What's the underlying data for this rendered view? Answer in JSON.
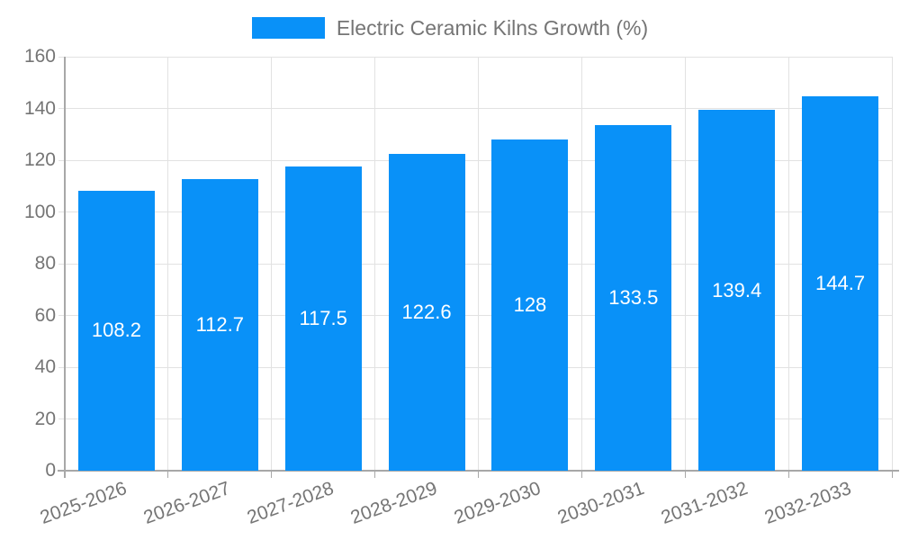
{
  "legend": {
    "label": "Electric Ceramic Kilns Growth (%)",
    "swatch_color": "#0991f8"
  },
  "chart_data": {
    "type": "bar",
    "title": "Electric Ceramic Kilns Growth (%)",
    "categories": [
      "2025-2026",
      "2026-2027",
      "2027-2028",
      "2028-2029",
      "2029-2030",
      "2030-2031",
      "2031-2032",
      "2032-2033"
    ],
    "values": [
      108.2,
      112.7,
      117.5,
      122.6,
      128,
      133.5,
      139.4,
      144.7
    ],
    "value_labels": [
      "108.2",
      "112.7",
      "117.5",
      "122.6",
      "128",
      "133.5",
      "139.4",
      "144.7"
    ],
    "xlabel": "",
    "ylabel": "",
    "ylim": [
      0,
      160
    ],
    "ytick_step": 20,
    "ytick_labels": [
      "0",
      "20",
      "40",
      "60",
      "80",
      "100",
      "120",
      "140",
      "160"
    ],
    "grid": true,
    "legend_position": "top-center",
    "x_tick_rotation_deg": -20,
    "colors": {
      "bar": "#0991f8",
      "value_label": "#ffffff",
      "axis_text": "#757575",
      "axis_line": "#a8a8a8",
      "gridline": "#e2e2e2"
    }
  }
}
